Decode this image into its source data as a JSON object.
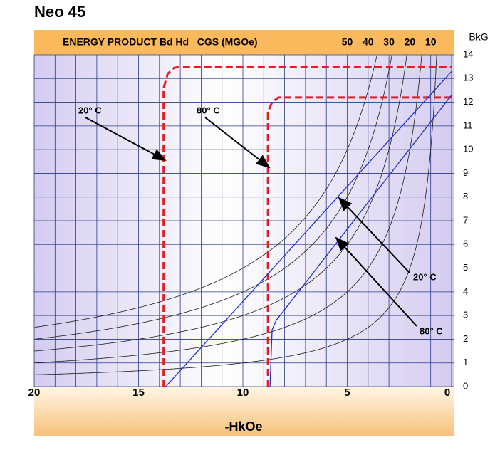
{
  "chart_data": {
    "type": "line",
    "title": "Neo 45",
    "top_label": "ENERGY PRODUCT Bd Hd   CGS (MGOe)",
    "energy_products": [
      50,
      40,
      30,
      20,
      10
    ],
    "energy_color": "#1a1a1a",
    "xlabel": "-HkOe",
    "ylabel": "BkG",
    "xlim": [
      20,
      0
    ],
    "xticks": [
      20,
      15,
      10,
      5,
      0
    ],
    "ylim": [
      0,
      14
    ],
    "yticks": [
      0,
      1,
      2,
      3,
      4,
      5,
      6,
      7,
      8,
      9,
      10,
      11,
      12,
      13,
      14
    ],
    "y_axis_side": "right",
    "grid": true,
    "grid_step": 1,
    "series": [
      {
        "color": "#e41e1e",
        "dashed": true,
        "x": [
          13.8,
          13.8,
          13.6,
          13.3,
          13.0,
          0
        ],
        "values": [
          0,
          12.6,
          13.2,
          13.45,
          13.5,
          13.5
        ]
      },
      {
        "color": "#e41e1e",
        "dashed": true,
        "x": [
          8.8,
          8.8,
          8.6,
          8.3,
          8.0,
          0
        ],
        "values": [
          0,
          11.6,
          12.0,
          12.2,
          12.2,
          12.2
        ]
      },
      {
        "color": "#1f2fd0",
        "dashed": false,
        "x": [
          13.7,
          0
        ],
        "values": [
          0,
          13.3
        ]
      },
      {
        "color": "#1f2fd0",
        "dashed": false,
        "x": [
          8.7,
          8.6,
          8.4,
          0
        ],
        "values": [
          0,
          2.4,
          2.8,
          12.3
        ]
      }
    ],
    "annotations": [
      "20° C",
      "80° C",
      "20° C",
      "80° C"
    ]
  }
}
